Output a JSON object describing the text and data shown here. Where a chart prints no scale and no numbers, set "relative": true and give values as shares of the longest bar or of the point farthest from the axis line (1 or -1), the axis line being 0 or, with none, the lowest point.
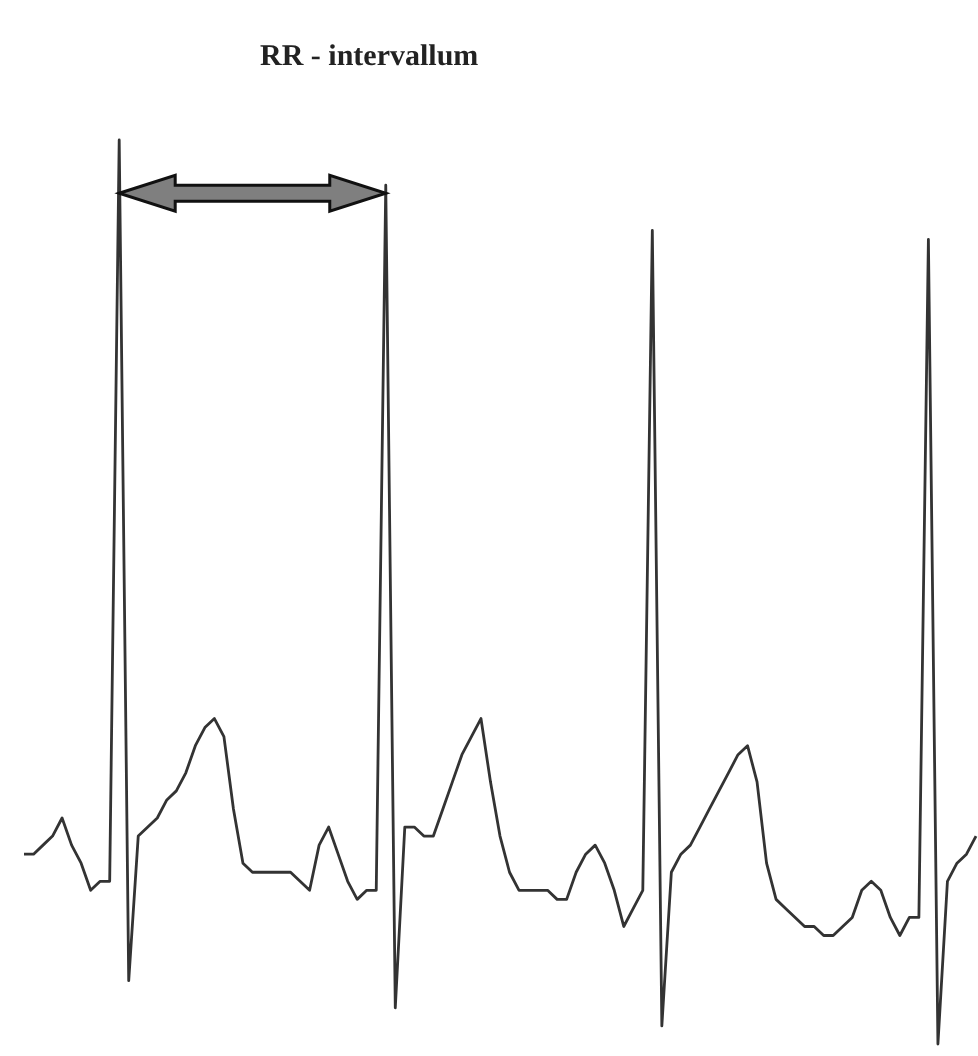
{
  "chart_data": {
    "type": "line",
    "title": "RR - intervallum",
    "relative": true,
    "grid": false,
    "categories": [
      null,
      null,
      null,
      null,
      null,
      null,
      null,
      null,
      null,
      null,
      null,
      null,
      null,
      null,
      null,
      null,
      null,
      null,
      null,
      null,
      null,
      null,
      null,
      null,
      null,
      null,
      null,
      null,
      null,
      null,
      null,
      null,
      null,
      null,
      null,
      null,
      null,
      null,
      null,
      null,
      null,
      null,
      null,
      null,
      null,
      null,
      null,
      null,
      null,
      null,
      null,
      null,
      null,
      null,
      null,
      null,
      null,
      null,
      null,
      null,
      null,
      null,
      null,
      null,
      null,
      null,
      null,
      null,
      null,
      null,
      null,
      null,
      null,
      null,
      null,
      null,
      null,
      null,
      null,
      null,
      null,
      null,
      null,
      null,
      null,
      null,
      null,
      null,
      null,
      null,
      null,
      null,
      null,
      null,
      null,
      null,
      null,
      null,
      null,
      null,
      null
    ],
    "series": [
      {
        "color": "#333333",
        "values": [
          0.21,
          0.21,
          0.22,
          0.23,
          0.25,
          0.22,
          0.2,
          0.17,
          0.18,
          0.18,
          1.0,
          0.07,
          0.23,
          0.24,
          0.25,
          0.27,
          0.28,
          0.3,
          0.33,
          0.35,
          0.36,
          0.34,
          0.26,
          0.2,
          0.19,
          0.19,
          0.19,
          0.19,
          0.19,
          0.18,
          0.17,
          0.22,
          0.24,
          0.21,
          0.18,
          0.16,
          0.17,
          0.17,
          0.95,
          0.04,
          0.24,
          0.24,
          0.23,
          0.23,
          0.26,
          0.29,
          0.32,
          0.34,
          0.36,
          0.29,
          0.23,
          0.19,
          0.17,
          0.17,
          0.17,
          0.17,
          0.16,
          0.16,
          0.19,
          0.21,
          0.22,
          0.2,
          0.17,
          0.13,
          0.15,
          0.17,
          0.9,
          0.02,
          0.19,
          0.21,
          0.22,
          0.24,
          0.26,
          0.28,
          0.3,
          0.32,
          0.33,
          0.29,
          0.2,
          0.16,
          0.15,
          0.14,
          0.13,
          0.13,
          0.12,
          0.12,
          0.13,
          0.14,
          0.17,
          0.18,
          0.17,
          0.14,
          0.12,
          0.14,
          0.14,
          0.89,
          0.0,
          0.18,
          0.2,
          0.21,
          0.23
        ]
      }
    ]
  }
}
